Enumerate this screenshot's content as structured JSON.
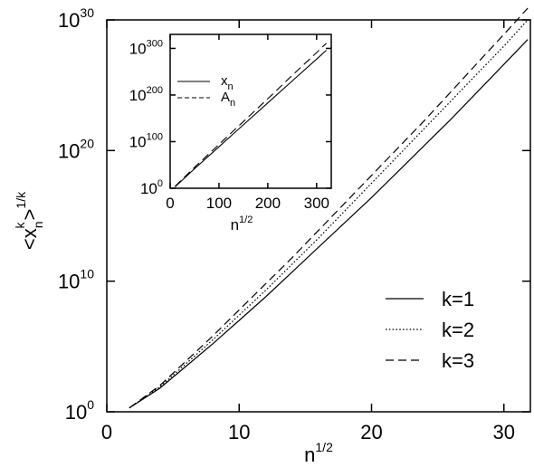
{
  "chart_data": [
    {
      "type": "line",
      "xlabel": "n",
      "xlabel_sup": "1/2",
      "ylabel": "<x",
      "ylabel_sub": "n",
      "ylabel_sup": "k",
      "ylabel_end": ">",
      "ylabel_outer_sup": "1/k",
      "yscale": "log",
      "xlim": [
        0,
        32
      ],
      "ylim_exponents": [
        0,
        30
      ],
      "x_ticks": [
        0,
        10,
        20,
        30
      ],
      "x_tick_labels": [
        "0",
        "10",
        "20",
        "30"
      ],
      "y_tick_exponents": [
        0,
        10,
        20,
        30
      ],
      "y_tick_base": "10",
      "y_tick_sups": [
        "0",
        "10",
        "20",
        "30"
      ],
      "legend_position": "lower-right",
      "grid": false,
      "series": [
        {
          "name": "k=1",
          "style": "solid",
          "x": [
            1.7,
            4,
            6,
            8,
            10,
            12,
            14,
            16,
            18,
            20,
            22,
            24,
            26,
            28,
            30,
            31.8
          ],
          "log10_y": [
            0.3,
            1.8,
            3.5,
            5.2,
            7.0,
            8.8,
            10.7,
            12.6,
            14.5,
            16.4,
            18.4,
            20.4,
            22.4,
            24.5,
            26.6,
            28.5
          ]
        },
        {
          "name": "k=2",
          "style": "dotted",
          "x": [
            1.7,
            4,
            6,
            8,
            10,
            12,
            14,
            16,
            18,
            20,
            22,
            24,
            26,
            28,
            30,
            31.8
          ],
          "log10_y": [
            0.3,
            1.9,
            3.7,
            5.5,
            7.4,
            9.3,
            11.3,
            13.3,
            15.4,
            17.5,
            19.6,
            21.7,
            23.8,
            25.9,
            28.0,
            30.0
          ]
        },
        {
          "name": "k=3",
          "style": "dashed",
          "x": [
            1.7,
            4,
            6,
            8,
            10,
            12,
            14,
            16,
            18,
            20,
            22,
            24,
            26,
            28,
            30,
            31.8
          ],
          "log10_y": [
            0.3,
            2.0,
            3.9,
            5.8,
            7.8,
            9.8,
            11.8,
            13.9,
            16.0,
            18.1,
            20.2,
            22.3,
            24.5,
            26.7,
            28.9,
            30.9
          ]
        }
      ]
    },
    {
      "type": "line",
      "role": "inset",
      "xlabel": "n",
      "xlabel_sup": "1/2",
      "yscale": "log",
      "xlim": [
        0,
        330
      ],
      "ylim_exponents": [
        0,
        330
      ],
      "x_ticks": [
        0,
        100,
        200,
        300
      ],
      "x_tick_labels": [
        "0",
        "100",
        "200",
        "300"
      ],
      "y_tick_exponents": [
        0,
        100,
        200,
        300
      ],
      "y_tick_base": "10",
      "y_tick_sups": [
        "0",
        "100",
        "200",
        "300"
      ],
      "legend_position": "top-left",
      "series": [
        {
          "name": "x",
          "name_sub": "n",
          "style": "solid",
          "x": [
            10,
            50,
            100,
            150,
            200,
            250,
            300,
            320
          ],
          "log10_y": [
            3,
            42,
            89,
            136,
            183,
            230,
            277,
            296
          ]
        },
        {
          "name": "A",
          "name_sub": "n",
          "style": "dashed",
          "x": [
            10,
            50,
            100,
            150,
            200,
            250,
            300,
            320
          ],
          "log10_y": [
            4,
            45,
            94,
            143,
            192,
            242,
            291,
            311
          ]
        }
      ]
    }
  ]
}
